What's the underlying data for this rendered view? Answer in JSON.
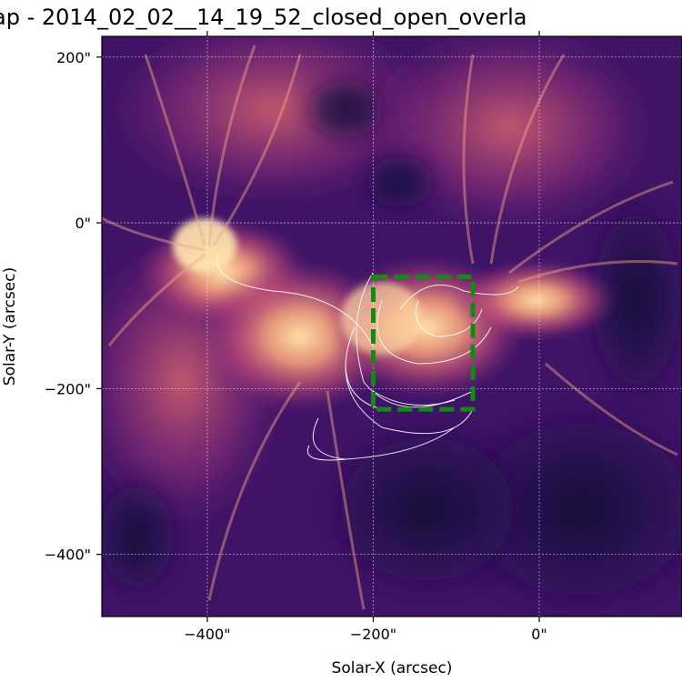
{
  "chart_data": {
    "type": "heatmap",
    "title": "ap - 2014_02_02__14_19_52_closed_open_overla",
    "xlabel": "Solar-X (arcsec)",
    "ylabel": "Solar-Y (arcsec)",
    "xlim": [
      -527,
      172
    ],
    "ylim": [
      -475,
      225
    ],
    "xticks": [
      -400,
      -200,
      0
    ],
    "yticks": [
      200,
      0,
      -200,
      -400
    ],
    "xtick_labels": [
      "−400\"",
      "−200\"",
      "0\""
    ],
    "ytick_labels": [
      "200\"",
      "0\"",
      "−200\"",
      "−400\""
    ],
    "grid": true,
    "colormap": "magma",
    "box": {
      "x0": -200,
      "x1": -80,
      "y0": -225,
      "y1": -65,
      "color": "#138a13"
    },
    "colors": {
      "background": "#2a0d55",
      "bright": "#ffd9a0",
      "loops": "#ffffff"
    }
  }
}
